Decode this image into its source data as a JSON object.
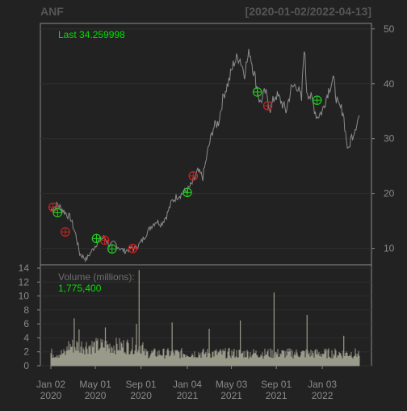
{
  "chart_data": {
    "type": "line",
    "symbol": "ANF",
    "date_range": "[2020-01-02/2022-04-13]",
    "price_panel": {
      "last_label": "Last 34.259998",
      "y_ticks": [
        10,
        20,
        30,
        40,
        50
      ],
      "ylim": [
        7,
        51
      ],
      "series": {
        "dates": [
          "2020-01-02",
          "2020-01-20",
          "2020-02-10",
          "2020-02-24",
          "2020-03-09",
          "2020-03-20",
          "2020-04-06",
          "2020-04-24",
          "2020-05-11",
          "2020-05-26",
          "2020-06-08",
          "2020-06-22",
          "2020-07-06",
          "2020-07-20",
          "2020-08-03",
          "2020-08-17",
          "2020-08-31",
          "2020-09-14",
          "2020-09-28",
          "2020-10-12",
          "2020-10-26",
          "2020-11-09",
          "2020-11-23",
          "2020-12-07",
          "2020-12-21",
          "2021-01-04",
          "2021-01-19",
          "2021-02-01",
          "2021-02-15",
          "2021-03-01",
          "2021-03-15",
          "2021-03-29",
          "2021-04-12",
          "2021-04-26",
          "2021-05-10",
          "2021-05-24",
          "2021-06-07",
          "2021-06-21",
          "2021-07-06",
          "2021-07-19",
          "2021-08-02",
          "2021-08-16",
          "2021-08-30",
          "2021-09-13",
          "2021-09-27",
          "2021-10-11",
          "2021-10-25",
          "2021-11-08",
          "2021-11-15",
          "2021-11-22",
          "2021-12-06",
          "2021-12-20",
          "2022-01-03",
          "2022-01-18",
          "2022-02-01",
          "2022-02-14",
          "2022-02-28",
          "2022-03-07",
          "2022-03-14",
          "2022-03-21",
          "2022-03-28",
          "2022-04-04",
          "2022-04-13"
        ],
        "close": [
          17.0,
          18.0,
          16.5,
          15.5,
          12.5,
          9.0,
          8.0,
          9.8,
          11.5,
          12.0,
          10.5,
          11.0,
          10.0,
          9.5,
          10.0,
          10.0,
          11.0,
          12.5,
          14.0,
          15.0,
          14.5,
          16.0,
          18.5,
          19.5,
          20.0,
          20.5,
          22.0,
          24.0,
          23.0,
          28.0,
          32.0,
          33.0,
          38.0,
          40.5,
          44.0,
          45.0,
          42.0,
          46.0,
          41.0,
          36.5,
          38.5,
          35.5,
          38.0,
          37.0,
          35.0,
          39.0,
          40.0,
          37.0,
          47.0,
          39.0,
          37.0,
          34.0,
          35.0,
          38.5,
          41.0,
          36.0,
          35.0,
          31.0,
          27.5,
          30.0,
          31.0,
          32.5,
          34.26
        ]
      },
      "buy_markers": [
        {
          "date": "2020-01-20",
          "price": 16.5
        },
        {
          "date": "2020-05-04",
          "price": 11.8
        },
        {
          "date": "2020-06-15",
          "price": 9.9
        },
        {
          "date": "2021-01-04",
          "price": 20.2
        },
        {
          "date": "2021-07-12",
          "price": 38.5
        },
        {
          "date": "2021-12-20",
          "price": 37.0
        }
      ],
      "sell_markers": [
        {
          "date": "2020-01-08",
          "price": 17.5
        },
        {
          "date": "2020-02-10",
          "price": 13.0
        },
        {
          "date": "2020-05-26",
          "price": 11.5
        },
        {
          "date": "2020-08-10",
          "price": 10.0
        },
        {
          "date": "2021-01-20",
          "price": 23.2
        },
        {
          "date": "2021-08-09",
          "price": 36.0
        }
      ]
    },
    "volume_panel": {
      "title": "Volume (millions):",
      "last_value": "1,775,400",
      "y_ticks": [
        0,
        2,
        4,
        6,
        8,
        10,
        12,
        14
      ],
      "ylim": [
        0,
        14
      ],
      "x_tick_labels": [
        {
          "date": "2020-01-02",
          "line1": "Jan 02",
          "line2": "2020"
        },
        {
          "date": "2020-05-01",
          "line1": "May 01",
          "line2": "2020"
        },
        {
          "date": "2020-09-01",
          "line1": "Sep 01",
          "line2": "2020"
        },
        {
          "date": "2021-01-04",
          "line1": "Jan 04",
          "line2": "2021"
        },
        {
          "date": "2021-05-03",
          "line1": "May 03",
          "line2": "2021"
        },
        {
          "date": "2021-09-01",
          "line1": "Sep 01",
          "line2": "2021"
        },
        {
          "date": "2022-01-03",
          "line1": "Jan 03",
          "line2": "2022"
        }
      ],
      "spikes": [
        {
          "date": "2020-03-05",
          "value": 6.8
        },
        {
          "date": "2020-03-18",
          "value": 5.2
        },
        {
          "date": "2020-05-28",
          "value": 5.5
        },
        {
          "date": "2020-08-27",
          "value": 13.7
        },
        {
          "date": "2020-08-20",
          "value": 6.0
        },
        {
          "date": "2020-11-24",
          "value": 6.2
        },
        {
          "date": "2021-03-04",
          "value": 5.3
        },
        {
          "date": "2021-05-27",
          "value": 6.5
        },
        {
          "date": "2021-08-26",
          "value": 10.5
        },
        {
          "date": "2021-11-23",
          "value": 7.3
        },
        {
          "date": "2022-03-02",
          "value": 4.3
        }
      ],
      "baseline": 1.7
    },
    "colors": {
      "background": "#222222",
      "frame": "#8a8a8a",
      "grid": "#2e2e2e",
      "axis_text": "#8a8a8a",
      "price_line": "#8c8c8c",
      "highlight_green": "#00e000",
      "buy_marker": "#22cc22",
      "sell_marker": "#cc2222",
      "volume_bar": "#9a9a8a"
    }
  }
}
